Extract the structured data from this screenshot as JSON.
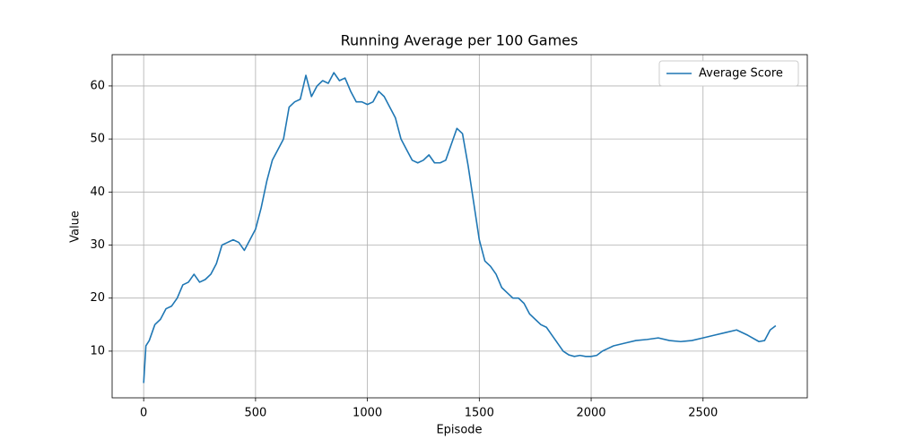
{
  "chart_data": {
    "type": "line",
    "title": "Running Average per 100 Games",
    "x_label": "Episode",
    "y_label": "Value",
    "x": [
      0,
      10,
      25,
      50,
      75,
      100,
      125,
      150,
      175,
      200,
      225,
      250,
      275,
      300,
      325,
      350,
      375,
      400,
      425,
      450,
      475,
      500,
      525,
      550,
      575,
      600,
      625,
      650,
      675,
      700,
      725,
      750,
      775,
      800,
      825,
      850,
      875,
      900,
      925,
      950,
      975,
      1000,
      1025,
      1050,
      1075,
      1100,
      1125,
      1150,
      1175,
      1200,
      1225,
      1250,
      1275,
      1300,
      1325,
      1350,
      1375,
      1400,
      1425,
      1450,
      1475,
      1500,
      1525,
      1550,
      1575,
      1600,
      1625,
      1650,
      1675,
      1700,
      1725,
      1750,
      1775,
      1800,
      1825,
      1850,
      1875,
      1900,
      1925,
      1950,
      1975,
      2000,
      2025,
      2050,
      2075,
      2100,
      2150,
      2200,
      2250,
      2300,
      2350,
      2400,
      2450,
      2500,
      2550,
      2600,
      2650,
      2700,
      2750,
      2775,
      2800,
      2825
    ],
    "series": [
      {
        "name": "Average Score",
        "color": "#1f77b4",
        "values": [
          4,
          11,
          12,
          15,
          16,
          18,
          18.5,
          20,
          22.5,
          23,
          24.5,
          23,
          23.5,
          24.5,
          26.5,
          30,
          30.5,
          31,
          30.5,
          29,
          31,
          33,
          37,
          42,
          46,
          48,
          50,
          56,
          57,
          57.5,
          62,
          58,
          60,
          61,
          60.5,
          62.5,
          61,
          61.5,
          59,
          57,
          57,
          56.5,
          57,
          59,
          58,
          56,
          54,
          50,
          48,
          46,
          45.5,
          46,
          47,
          45.5,
          45.5,
          46,
          49,
          52,
          51,
          45,
          38,
          31,
          27,
          26,
          24.5,
          22,
          21,
          20,
          20,
          19,
          17,
          16,
          15,
          14.5,
          13,
          11.5,
          10,
          9.3,
          9,
          9.2,
          9,
          9,
          9.2,
          10,
          10.5,
          11,
          11.5,
          12,
          12.2,
          12.5,
          12,
          11.8,
          12,
          12.5,
          13,
          13.5,
          14,
          13,
          11.8,
          12,
          14,
          14.8
        ]
      }
    ],
    "xlim": [
      -141,
      2966
    ],
    "ylim": [
      1.2,
      65.9
    ],
    "xticks": [
      0,
      500,
      1000,
      1500,
      2000,
      2500
    ],
    "yticks": [
      10,
      20,
      30,
      40,
      50,
      60
    ],
    "grid": true,
    "legend": "upper right"
  }
}
